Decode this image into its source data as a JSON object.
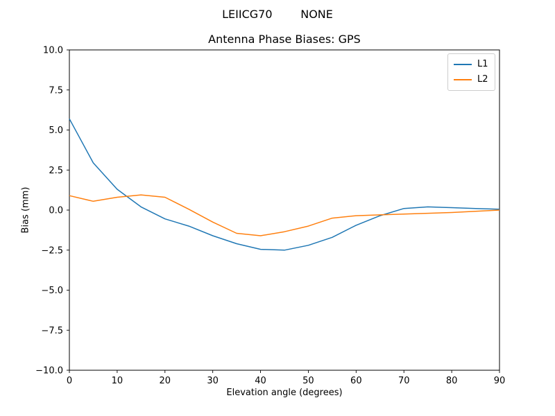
{
  "figure": {
    "suptitle": "LEIICG70        NONE",
    "background": "#ffffff"
  },
  "chart_data": {
    "type": "line",
    "title": "Antenna Phase Biases: GPS",
    "xlabel": "Elevation angle (degrees)",
    "ylabel": "Bias (mm)",
    "xlim": [
      0,
      90
    ],
    "ylim": [
      -10,
      10
    ],
    "x_ticks": [
      0,
      10,
      20,
      30,
      40,
      50,
      60,
      70,
      80,
      90
    ],
    "y_ticks": [
      10.0,
      7.5,
      5.0,
      2.5,
      0.0,
      -2.5,
      -5.0,
      -7.5,
      -10.0
    ],
    "y_tick_labels": [
      "10.0",
      "7.5",
      "5.0",
      "2.5",
      "0.0",
      "−2.5",
      "−5.0",
      "−7.5",
      "−10.0"
    ],
    "grid": false,
    "legend_position": "upper right",
    "line_width": 1.5,
    "x": [
      0,
      5,
      10,
      15,
      20,
      25,
      30,
      35,
      40,
      45,
      50,
      55,
      60,
      65,
      70,
      75,
      80,
      85,
      90
    ],
    "series": [
      {
        "name": "L1",
        "color": "#1f77b4",
        "values": [
          5.7,
          2.95,
          1.3,
          0.2,
          -0.55,
          -1.0,
          -1.6,
          -2.1,
          -2.45,
          -2.5,
          -2.2,
          -1.7,
          -0.95,
          -0.35,
          0.1,
          0.2,
          0.15,
          0.1,
          0.05
        ]
      },
      {
        "name": "L2",
        "color": "#ff7f0e",
        "values": [
          0.9,
          0.55,
          0.8,
          0.95,
          0.8,
          0.05,
          -0.75,
          -1.45,
          -1.6,
          -1.35,
          -1.0,
          -0.5,
          -0.35,
          -0.3,
          -0.25,
          -0.2,
          -0.15,
          -0.08,
          0.0
        ]
      }
    ]
  }
}
